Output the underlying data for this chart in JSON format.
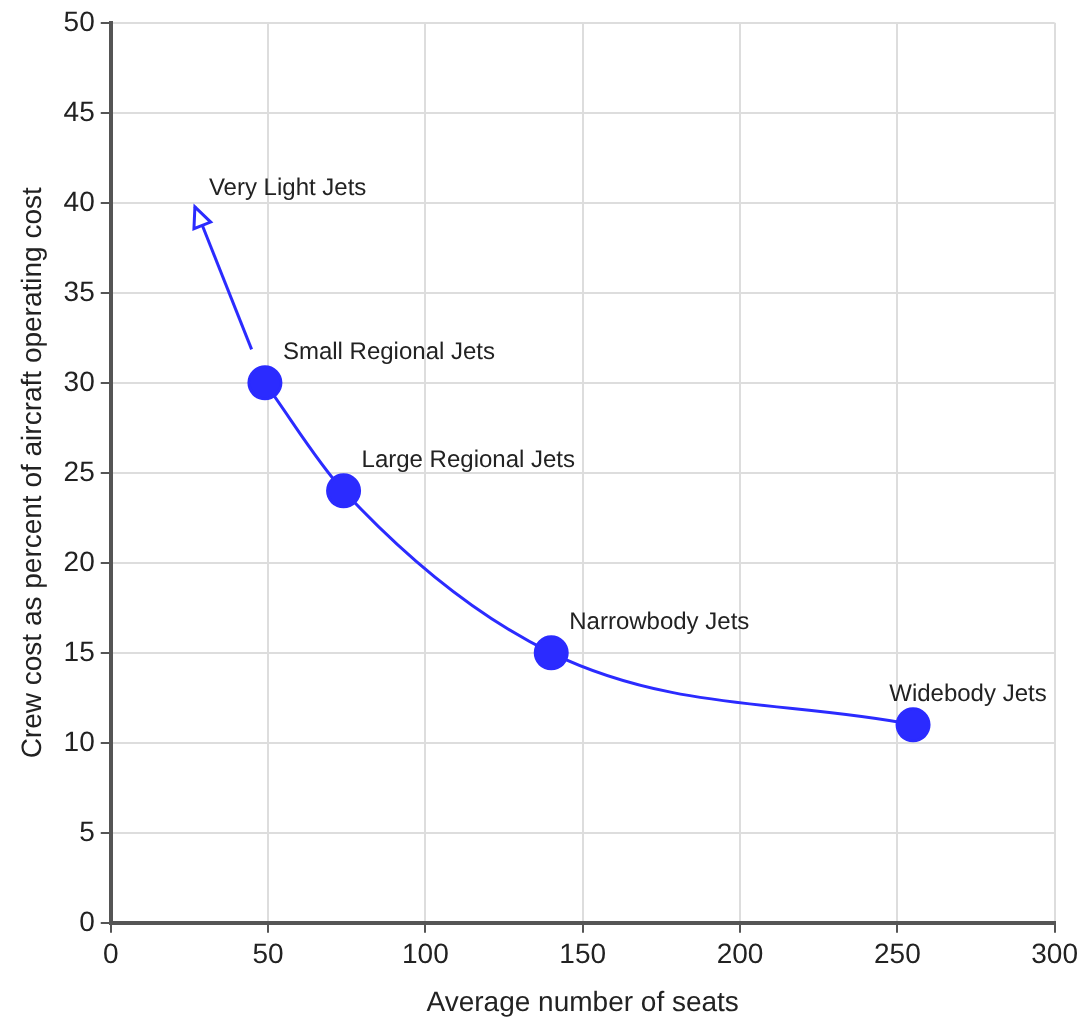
{
  "chart_data": {
    "type": "line",
    "xlabel": "Average number of seats",
    "ylabel": "Crew cost as percent of aircraft operating cost",
    "x": [
      49,
      74,
      140,
      255
    ],
    "series": [
      {
        "color": "#2b2bff",
        "values": [
          30,
          24,
          15,
          11
        ]
      }
    ],
    "marker": "circle",
    "line_style": "solid",
    "grid": true,
    "xlim": [
      0,
      300
    ],
    "xticks": [
      0,
      50,
      100,
      150,
      200,
      250,
      300
    ],
    "ylim": [
      0,
      50
    ],
    "yticks": [
      0,
      5,
      10,
      15,
      20,
      25,
      30,
      35,
      40,
      45,
      50
    ],
    "annotations": [
      "Very Light Jets",
      {
        "text": "Small Regional Jets",
        "x": 49,
        "y": 30
      },
      {
        "text": "Large Regional Jets",
        "x": 74,
        "y": 24
      },
      {
        "text": "Narrowbody Jets",
        "x": 140,
        "y": 15
      },
      {
        "text": "Widebody Jets",
        "x": 255,
        "y": 11
      }
    ]
  }
}
